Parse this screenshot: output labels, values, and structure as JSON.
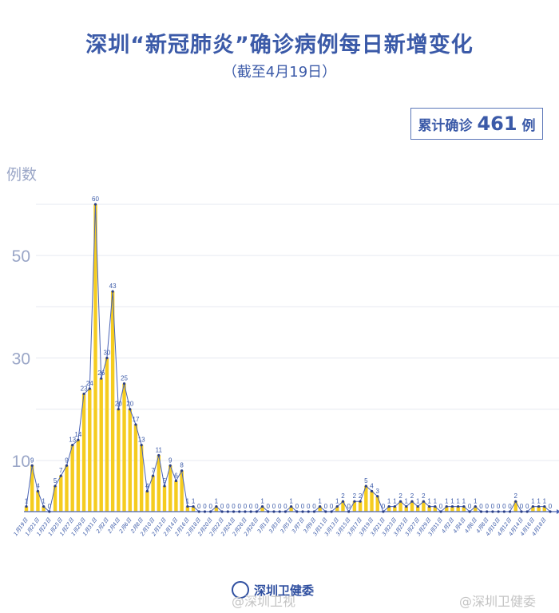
{
  "header": {
    "title": "深圳“新冠肺炎”确诊病例每日新增变化",
    "subtitle": "（截至4月19日）"
  },
  "total": {
    "prefix": "累计确诊",
    "value": "461",
    "suffix": "例"
  },
  "footer": {
    "logo_text": "深圳卫健委",
    "watermark_left": "@深圳卫视",
    "watermark_right": "@深圳卫健委"
  },
  "colors": {
    "bar": "#f5cc1f",
    "line": "#4a63b5",
    "grid": "#e6e9f0",
    "axis_text": "#9aa6c7",
    "label_text": "#3b5aa8"
  },
  "chart_data": {
    "type": "bar",
    "title": "深圳“新冠肺炎”确诊病例每日新增变化",
    "subtitle": "（截至4月19日）",
    "xlabel": "",
    "ylabel": "例数",
    "ylim": [
      0,
      60
    ],
    "yticks_labeled": [
      10,
      30,
      50
    ],
    "gridlines": [
      10,
      20,
      30,
      40,
      50,
      60
    ],
    "grid": true,
    "legend": null,
    "overlay_line": true,
    "x_tick_labels": [
      "1月19日",
      "1月21日",
      "1月23日",
      "1月25日",
      "1月27日",
      "1月29日",
      "1月31日",
      "2月2日",
      "2月4日",
      "2月6日",
      "2月8日",
      "2月10日",
      "2月12日",
      "2月14日",
      "2月16日",
      "2月18日",
      "2月20日",
      "2月22日",
      "2月24日",
      "2月26日",
      "2月28日",
      "3月1日",
      "3月3日",
      "3月5日",
      "3月7日",
      "3月9日",
      "3月11日",
      "3月13日",
      "3月15日",
      "3月17日",
      "3月19日",
      "3月21日",
      "3月23日",
      "3月25日",
      "3月27日",
      "3月29日",
      "3月31日",
      "4月2日",
      "4月4日",
      "4月6日",
      "4月8日",
      "4月10日",
      "4月12日",
      "4月14日",
      "4月16日",
      "4月18日"
    ],
    "categories": [
      "1月19日",
      "1月20日",
      "1月21日",
      "1月22日",
      "1月23日",
      "1月24日",
      "1月25日",
      "1月26日",
      "1月27日",
      "1月28日",
      "1月29日",
      "1月30日",
      "1月31日",
      "2月1日",
      "2月2日",
      "2月3日",
      "2月4日",
      "2月5日",
      "2月6日",
      "2月7日",
      "2月8日",
      "2月9日",
      "2月10日",
      "2月11日",
      "2月12日",
      "2月13日",
      "2月14日",
      "2月15日",
      "2月16日",
      "2月17日",
      "2月18日",
      "2月19日",
      "2月20日",
      "2月21日",
      "2月22日",
      "2月23日",
      "2月24日",
      "2月25日",
      "2月26日",
      "2月27日",
      "2月28日",
      "2月29日",
      "3月1日",
      "3月2日",
      "3月3日",
      "3月4日",
      "3月5日",
      "3月6日",
      "3月7日",
      "3月8日",
      "3月9日",
      "3月10日",
      "3月11日",
      "3月12日",
      "3月13日",
      "3月14日",
      "3月15日",
      "3月16日",
      "3月17日",
      "3月18日",
      "3月19日",
      "3月20日",
      "3月21日",
      "3月22日",
      "3月23日",
      "3月24日",
      "3月25日",
      "3月26日",
      "3月27日",
      "3月28日",
      "3月29日",
      "3月30日",
      "3月31日",
      "4月1日",
      "4月2日",
      "4月3日",
      "4月4日",
      "4月5日",
      "4月6日",
      "4月7日",
      "4月8日",
      "4月9日",
      "4月10日",
      "4月11日",
      "4月12日",
      "4月13日",
      "4月14日",
      "4月15日",
      "4月16日",
      "4月17日",
      "4月18日",
      "4月19日"
    ],
    "values": [
      1,
      9,
      4,
      1,
      0,
      5,
      7,
      9,
      13,
      14,
      23,
      24,
      60,
      26,
      30,
      43,
      20,
      25,
      20,
      17,
      13,
      4,
      7,
      11,
      5,
      9,
      6,
      8,
      1,
      1,
      0,
      0,
      0,
      1,
      0,
      0,
      0,
      0,
      0,
      0,
      0,
      1,
      0,
      0,
      0,
      0,
      1,
      0,
      0,
      0,
      0,
      1,
      0,
      0,
      1,
      2,
      0,
      2,
      2,
      5,
      4,
      3,
      0,
      1,
      1,
      2,
      1,
      2,
      1,
      2,
      1,
      1,
      0,
      1,
      1,
      1,
      1,
      0,
      1,
      0,
      0,
      0,
      0,
      0,
      0,
      2,
      0,
      0,
      1,
      1,
      1,
      0
    ]
  }
}
